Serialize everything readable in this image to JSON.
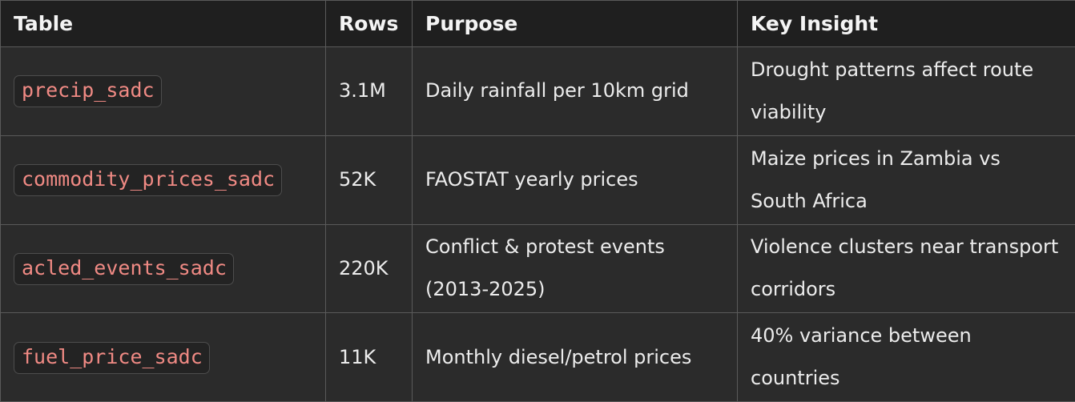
{
  "header": {
    "table": "Table",
    "rows": "Rows",
    "purpose": "Purpose",
    "key_insight": "Key Insight"
  },
  "rows": [
    {
      "table": "precip_sadc",
      "rows": "3.1M",
      "purpose": "Daily rainfall per 10km grid",
      "insight": "Drought patterns affect route viability"
    },
    {
      "table": "commodity_prices_sadc",
      "rows": "52K",
      "purpose": "FAOSTAT yearly prices",
      "insight": "Maize prices in Zambia vs South Africa"
    },
    {
      "table": "acled_events_sadc",
      "rows": "220K",
      "purpose": "Conflict & protest events (2013-2025)",
      "insight": "Violence clusters near transport corridors"
    },
    {
      "table": "fuel_price_sadc",
      "rows": "11K",
      "purpose": "Monthly diesel/petrol prices",
      "insight": "40% variance between countries"
    }
  ],
  "colors": {
    "background": "#2b2b2b",
    "header_background": "#1f1f1f",
    "code_text": "#f08a84",
    "border": "#5a5a5a"
  }
}
